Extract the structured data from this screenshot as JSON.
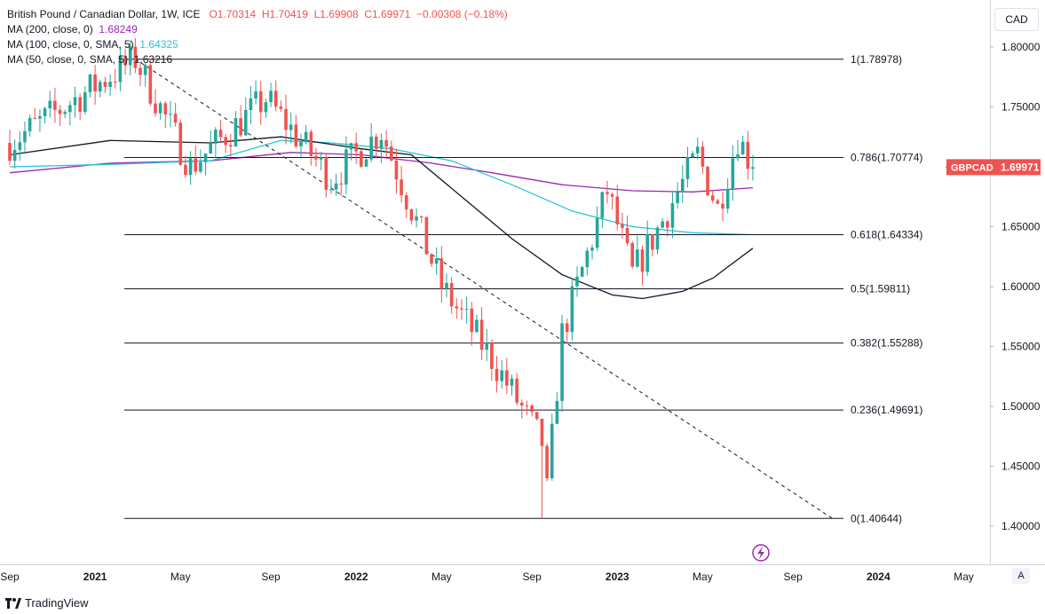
{
  "legend": {
    "title": "British Pound / Canadian Dollar, 1W, ICE",
    "open": "O1.70314",
    "high": "H1.70419",
    "low": "L1.69908",
    "close": "C1.69971",
    "change": "−0.00308 (−0.18%)",
    "ma200_label": "MA (200, close, 0)",
    "ma200_value": "1.68249",
    "ma100_label": "MA (100, close, 0, SMA, 5)",
    "ma100_value": "1.64325",
    "ma50_label": "MA (50, close, 0, SMA, 5)",
    "ma50_value": "1.63216"
  },
  "currency_button": "CAD",
  "auto_button": "A",
  "footer_brand": "TradingView",
  "colors": {
    "up": "#26a69a",
    "down": "#ef5350",
    "ma200": "#9c27b0",
    "ma100": "#26c6da",
    "ma50": "#131722",
    "fib": "#131722"
  },
  "chart_data": {
    "type": "candlestick",
    "symbol": "GBPCAD",
    "last_price": "1.69971",
    "y_axis": {
      "range": [
        1.37,
        1.82
      ],
      "ticks": [
        "1.80000",
        "1.75000",
        "1.70000",
        "1.65000",
        "1.60000",
        "1.55000",
        "1.50000",
        "1.45000",
        "1.40000"
      ]
    },
    "x_axis": {
      "ticks": [
        {
          "label": "Sep",
          "week": 0
        },
        {
          "label": "2021",
          "week": 17
        },
        {
          "label": "May",
          "week": 34
        },
        {
          "label": "Sep",
          "week": 52
        },
        {
          "label": "2022",
          "week": 69
        },
        {
          "label": "May",
          "week": 86
        },
        {
          "label": "Sep",
          "week": 104
        },
        {
          "label": "2023",
          "week": 121
        },
        {
          "label": "May",
          "week": 138
        },
        {
          "label": "Sep",
          "week": 156
        },
        {
          "label": "2024",
          "week": 173
        },
        {
          "label": "May",
          "week": 190
        }
      ]
    },
    "fib_levels": [
      {
        "ratio": "1",
        "price": 1.78978,
        "label": "1(1.78978)"
      },
      {
        "ratio": "0.786",
        "price": 1.70774,
        "label": "0.786(1.70774)"
      },
      {
        "ratio": "0.618",
        "price": 1.64334,
        "label": "0.618(1.64334)"
      },
      {
        "ratio": "0.5",
        "price": 1.59811,
        "label": "0.5(1.59811)"
      },
      {
        "ratio": "0.382",
        "price": 1.55288,
        "label": "0.382(1.55288)"
      },
      {
        "ratio": "0.236",
        "price": 1.49691,
        "label": "0.236(1.49691)"
      },
      {
        "ratio": "0",
        "price": 1.40644,
        "label": "0(1.40644)"
      }
    ],
    "trendline": {
      "from": {
        "week": 25,
        "price": 1.79
      },
      "to": {
        "week": 164,
        "price": 1.406
      }
    },
    "key_points": [
      {
        "week": 0,
        "price": 1.72
      },
      {
        "week": 25,
        "price": 1.79
      },
      {
        "week": 36,
        "price": 1.7
      },
      {
        "week": 51,
        "price": 1.757
      },
      {
        "week": 64,
        "price": 1.69
      },
      {
        "week": 74,
        "price": 1.73
      },
      {
        "week": 86,
        "price": 1.6
      },
      {
        "week": 96,
        "price": 1.54
      },
      {
        "week": 106,
        "price": 1.47
      },
      {
        "week": 106.5,
        "price": 1.406
      },
      {
        "week": 110,
        "price": 1.56
      },
      {
        "week": 116,
        "price": 1.64
      },
      {
        "week": 119,
        "price": 1.68
      },
      {
        "week": 124,
        "price": 1.61
      },
      {
        "week": 130,
        "price": 1.655
      },
      {
        "week": 137,
        "price": 1.71
      },
      {
        "week": 141,
        "price": 1.665
      },
      {
        "week": 145,
        "price": 1.725
      },
      {
        "week": 148,
        "price": 1.6997
      }
    ],
    "ma200": [
      [
        0,
        1.695
      ],
      [
        20,
        1.703
      ],
      [
        40,
        1.705
      ],
      [
        56,
        1.712
      ],
      [
        70,
        1.71
      ],
      [
        84,
        1.703
      ],
      [
        96,
        1.695
      ],
      [
        110,
        1.685
      ],
      [
        124,
        1.68
      ],
      [
        136,
        1.679
      ],
      [
        148,
        1.6825
      ]
    ],
    "ma100": [
      [
        0,
        1.7
      ],
      [
        20,
        1.702
      ],
      [
        40,
        1.705
      ],
      [
        54,
        1.722
      ],
      [
        64,
        1.72
      ],
      [
        76,
        1.715
      ],
      [
        88,
        1.705
      ],
      [
        100,
        1.685
      ],
      [
        112,
        1.663
      ],
      [
        124,
        1.65
      ],
      [
        136,
        1.645
      ],
      [
        148,
        1.6433
      ]
    ],
    "ma50": [
      [
        0,
        1.71
      ],
      [
        20,
        1.722
      ],
      [
        40,
        1.72
      ],
      [
        54,
        1.725
      ],
      [
        70,
        1.715
      ],
      [
        80,
        1.71
      ],
      [
        90,
        1.675
      ],
      [
        100,
        1.64
      ],
      [
        110,
        1.61
      ],
      [
        120,
        1.593
      ],
      [
        126,
        1.59
      ],
      [
        134,
        1.596
      ],
      [
        140,
        1.607
      ],
      [
        148,
        1.632
      ]
    ]
  }
}
